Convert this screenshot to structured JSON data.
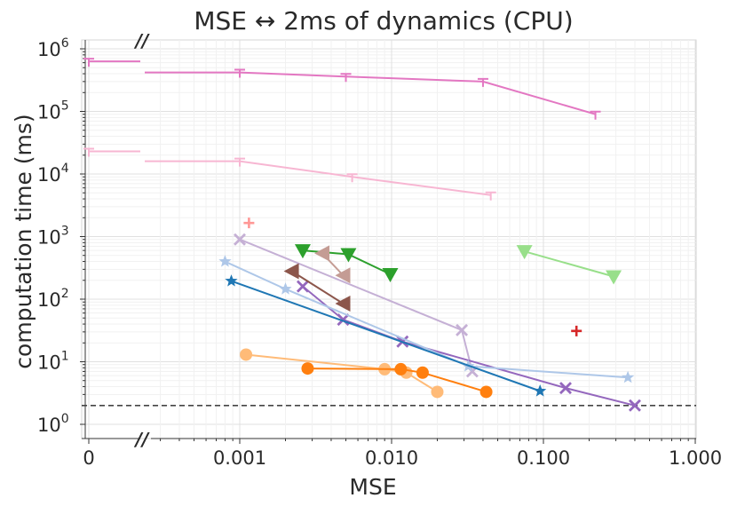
{
  "chart_data": {
    "type": "line",
    "title": "MSE ↔ 2ms of dynamics (CPU)",
    "xlabel": "MSE",
    "ylabel": "computation time (ms)",
    "x_scale": "log with zero break",
    "y_scale": "log",
    "x_tick_labels": [
      "0",
      "0.001",
      "0.010",
      "0.100",
      "1.000"
    ],
    "y_tick_labels": [
      {
        "base": "10",
        "exp": "0"
      },
      {
        "base": "10",
        "exp": "1"
      },
      {
        "base": "10",
        "exp": "2"
      },
      {
        "base": "10",
        "exp": "3"
      },
      {
        "base": "10",
        "exp": "4"
      },
      {
        "base": "10",
        "exp": "5"
      },
      {
        "base": "10",
        "exp": "6"
      }
    ],
    "axis_break_label": "//",
    "reference_line": {
      "y": 2,
      "style": "dashed",
      "color": "#444444"
    },
    "grid": true,
    "series": [
      {
        "color": "#e377c2",
        "marker": "tri-down",
        "points": [
          [
            0,
            630000
          ],
          [
            0.001,
            420000
          ],
          [
            0.005,
            360000
          ],
          [
            0.04,
            300000
          ],
          [
            0.22,
            90000
          ]
        ]
      },
      {
        "color": "#f7b6d2",
        "marker": "tri-down",
        "points": [
          [
            0,
            23000
          ],
          [
            0.001,
            16000
          ],
          [
            0.0055,
            9000
          ],
          [
            0.045,
            4600
          ]
        ]
      },
      {
        "color": "#ff9896",
        "marker": "plus",
        "points": [
          [
            0.00115,
            1650
          ]
        ]
      },
      {
        "color": "#d62728",
        "marker": "plus",
        "points": [
          [
            0.165,
            31
          ]
        ]
      },
      {
        "color": "#c5b0d5",
        "marker": "x",
        "points": [
          [
            0.001,
            900
          ],
          [
            0.029,
            32
          ],
          [
            0.034,
            7
          ]
        ]
      },
      {
        "color": "#9467bd",
        "marker": "x",
        "points": [
          [
            0.0026,
            160
          ],
          [
            0.0048,
            47
          ],
          [
            0.0118,
            21
          ],
          [
            0.14,
            3.8
          ],
          [
            0.4,
            2
          ]
        ]
      },
      {
        "color": "#2ca02c",
        "marker": "triangle-down",
        "points": [
          [
            0.0026,
            600
          ],
          [
            0.0052,
            520
          ],
          [
            0.0098,
            250
          ]
        ]
      },
      {
        "color": "#98df8a",
        "marker": "triangle-down",
        "points": [
          [
            0.075,
            580
          ],
          [
            0.29,
            230
          ]
        ]
      },
      {
        "color": "#c49c94",
        "marker": "triangle-left",
        "points": [
          [
            0.0035,
            540
          ],
          [
            0.0048,
            240
          ]
        ]
      },
      {
        "color": "#8c564b",
        "marker": "triangle-left",
        "points": [
          [
            0.0022,
            280
          ],
          [
            0.0048,
            85
          ]
        ]
      },
      {
        "color": "#aec7e8",
        "marker": "star",
        "points": [
          [
            0.0008,
            400
          ],
          [
            0.002,
            145
          ],
          [
            0.032,
            8.5
          ],
          [
            0.36,
            5.6
          ]
        ]
      },
      {
        "color": "#1f77b4",
        "marker": "star",
        "points": [
          [
            0.00088,
            195
          ],
          [
            0.095,
            3.4
          ]
        ]
      },
      {
        "color": "#ffbb78",
        "marker": "circle",
        "points": [
          [
            0.0011,
            13
          ],
          [
            0.009,
            7.6
          ],
          [
            0.0125,
            6.7
          ],
          [
            0.02,
            3.3
          ]
        ]
      },
      {
        "color": "#ff7f0e",
        "marker": "circle",
        "points": [
          [
            0.0028,
            7.8
          ],
          [
            0.0115,
            7.6
          ],
          [
            0.016,
            6.7
          ],
          [
            0.042,
            3.3
          ]
        ]
      }
    ]
  }
}
